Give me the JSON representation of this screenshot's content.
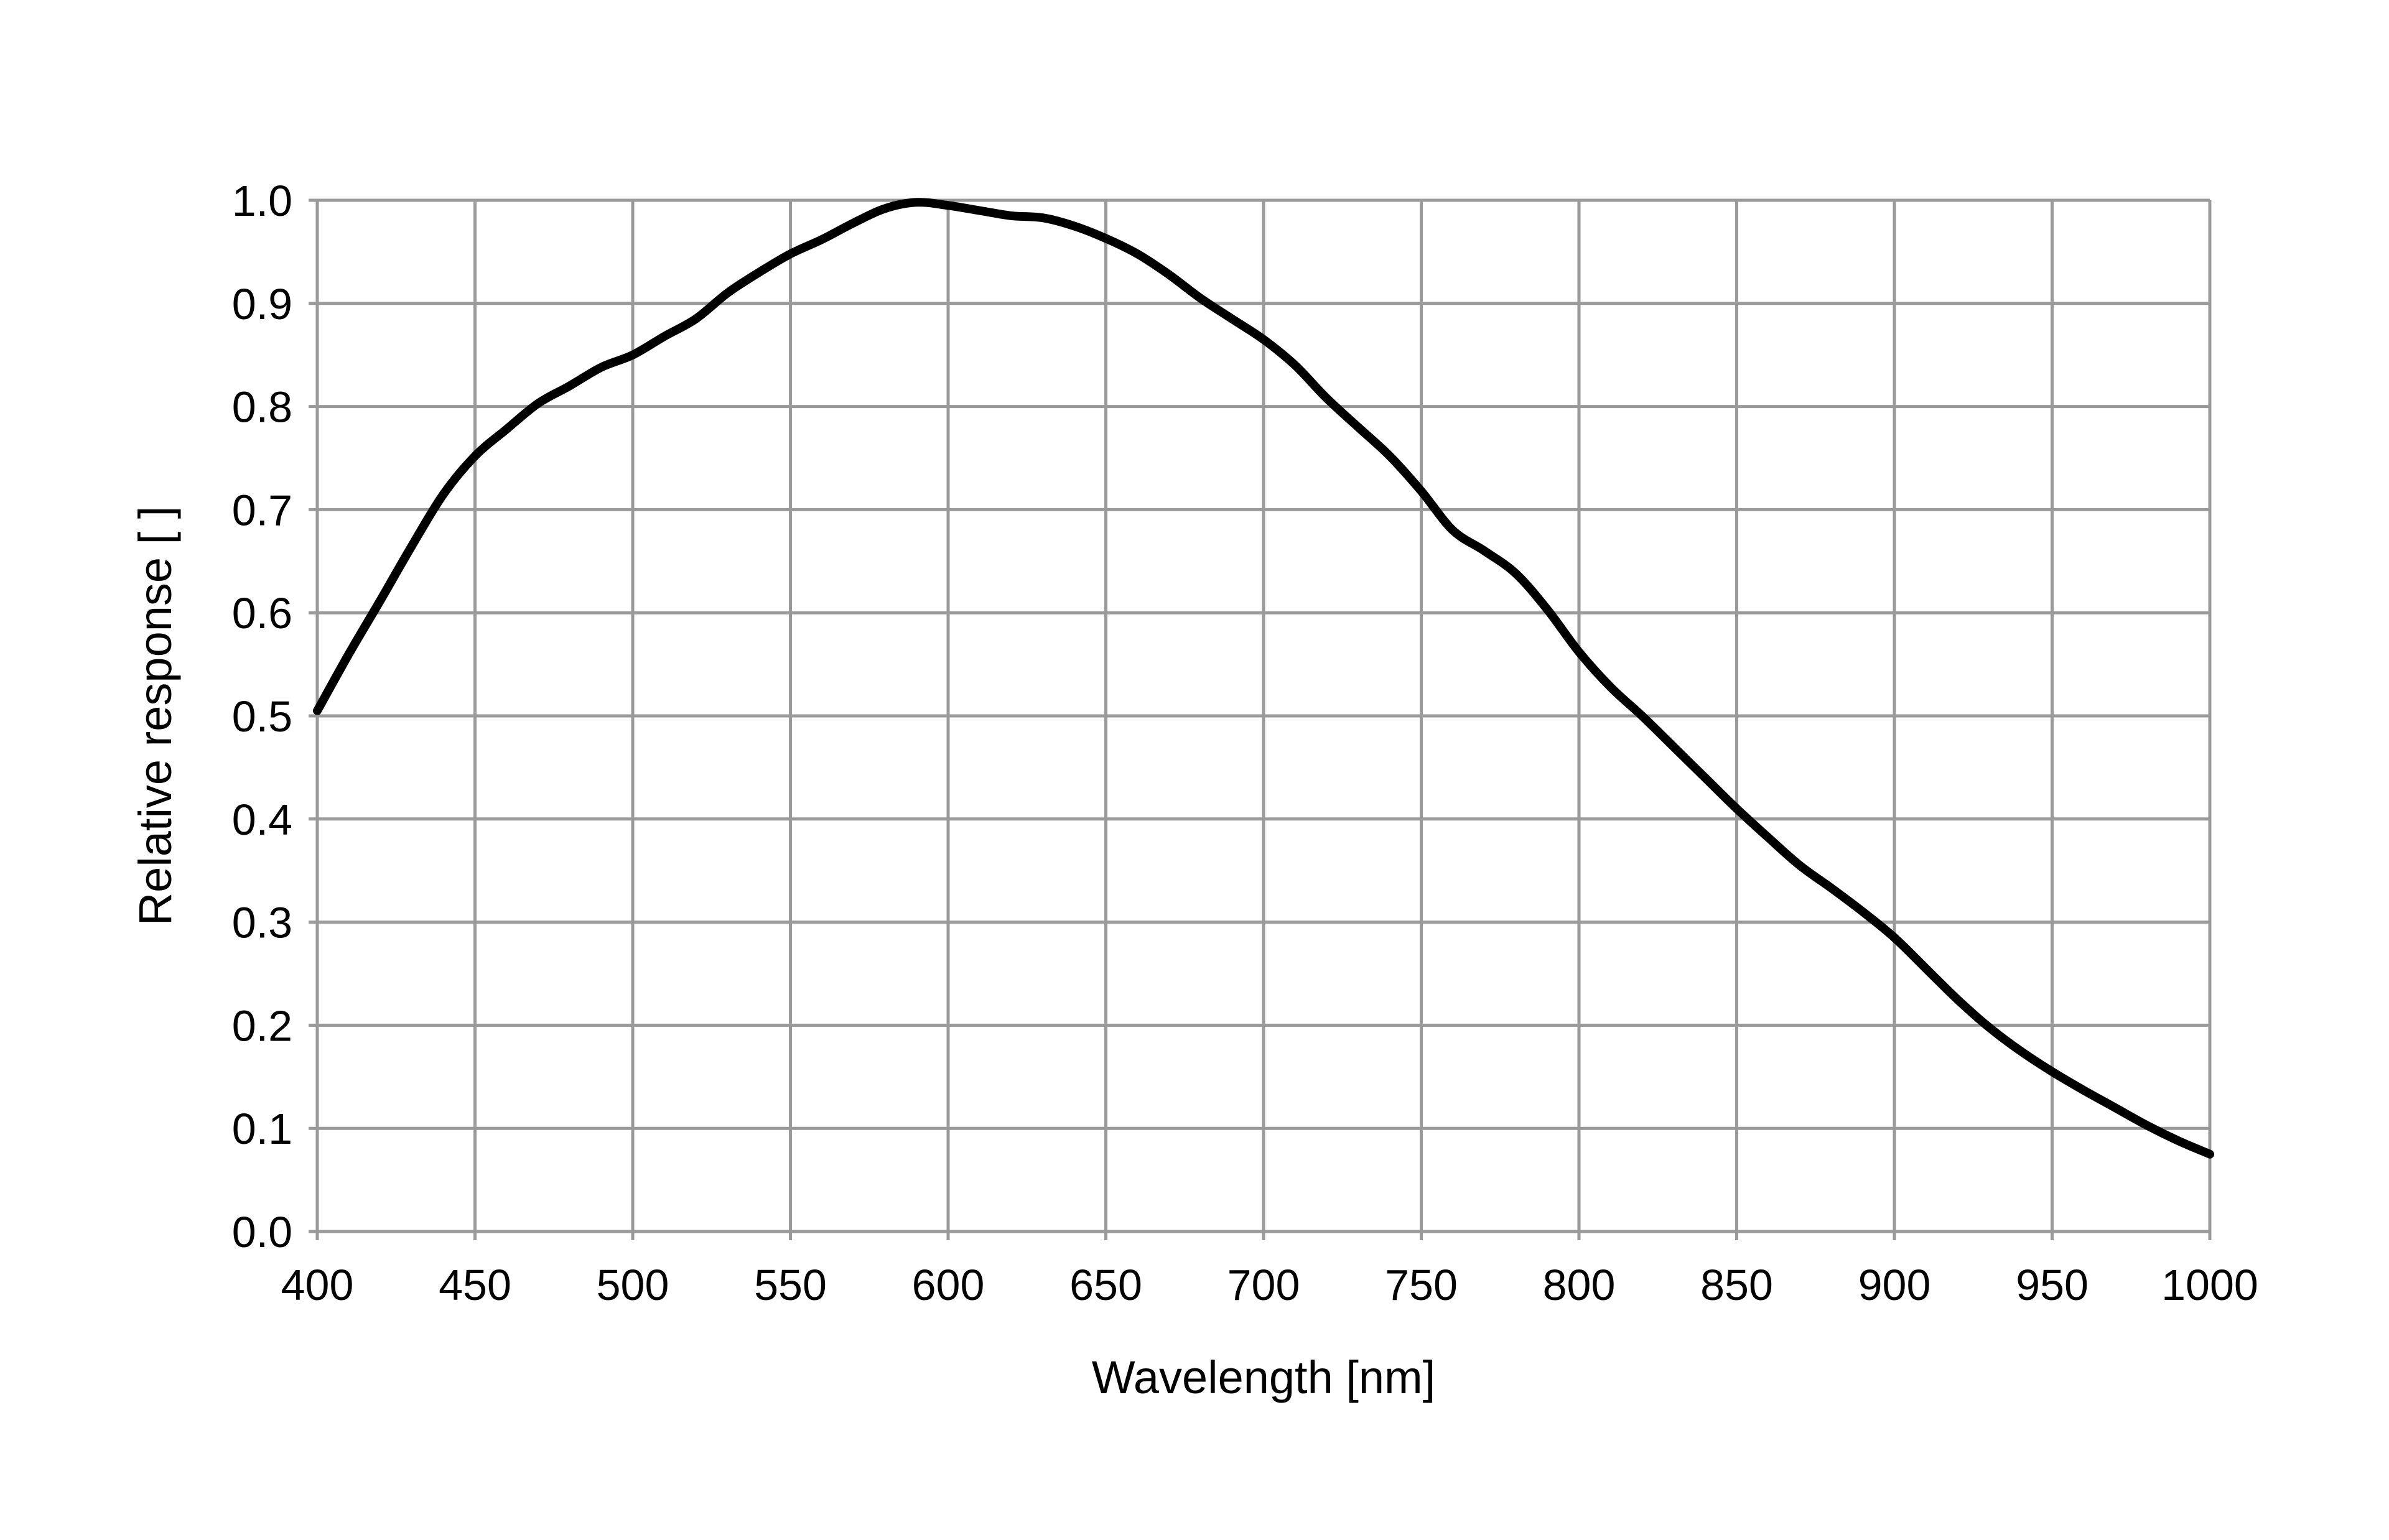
{
  "chart_data": {
    "type": "line",
    "title": "",
    "xlabel": "Wavelength [nm]",
    "ylabel": "Relative response [ ]",
    "xlim": [
      400,
      1000
    ],
    "ylim": [
      0.0,
      1.0
    ],
    "x_ticks": [
      "400",
      "450",
      "500",
      "550",
      "600",
      "650",
      "700",
      "750",
      "800",
      "850",
      "900",
      "950",
      "1000"
    ],
    "y_ticks": [
      "0.0",
      "0.1",
      "0.2",
      "0.3",
      "0.4",
      "0.5",
      "0.6",
      "0.7",
      "0.8",
      "0.9",
      "1.0"
    ],
    "grid": true,
    "legend": "none",
    "colors": {
      "line": "#000000",
      "grid": "#9a9a9a",
      "axis": "#808080"
    },
    "series": [
      {
        "x": [
          400,
          410,
          420,
          430,
          440,
          450,
          460,
          470,
          480,
          490,
          500,
          510,
          520,
          530,
          540,
          550,
          560,
          570,
          580,
          590,
          600,
          610,
          620,
          630,
          640,
          650,
          660,
          670,
          680,
          690,
          700,
          710,
          720,
          730,
          740,
          750,
          760,
          770,
          780,
          790,
          800,
          810,
          820,
          830,
          840,
          850,
          860,
          870,
          880,
          890,
          900,
          910,
          920,
          930,
          940,
          950,
          960,
          970,
          980,
          990,
          1000
        ],
        "values": [
          0.505,
          0.56,
          0.612,
          0.665,
          0.715,
          0.752,
          0.778,
          0.803,
          0.82,
          0.838,
          0.85,
          0.868,
          0.885,
          0.91,
          0.93,
          0.948,
          0.962,
          0.978,
          0.992,
          0.998,
          0.995,
          0.99,
          0.985,
          0.983,
          0.975,
          0.963,
          0.948,
          0.928,
          0.905,
          0.885,
          0.865,
          0.84,
          0.808,
          0.78,
          0.752,
          0.718,
          0.68,
          0.66,
          0.638,
          0.603,
          0.562,
          0.528,
          0.5,
          0.47,
          0.44,
          0.41,
          0.382,
          0.355,
          0.333,
          0.31,
          0.285,
          0.255,
          0.225,
          0.198,
          0.175,
          0.155,
          0.137,
          0.12,
          0.103,
          0.088,
          0.075
        ]
      }
    ]
  }
}
